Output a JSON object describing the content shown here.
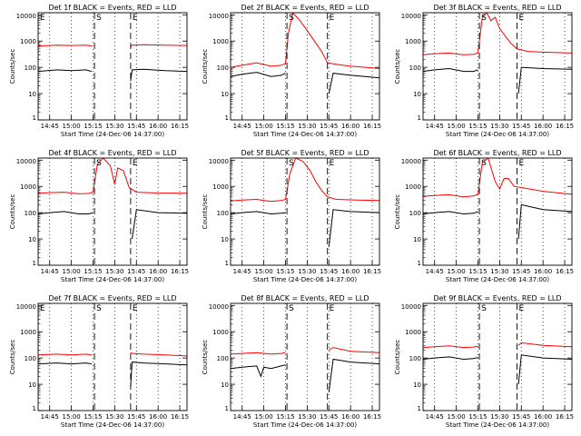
{
  "chart_data": [
    {
      "type": "line",
      "title": "Det 1f BLACK = Events, RED = LLD",
      "ylabel": "Counts/sec",
      "xlabel": "Start Time (24-Dec-06 14:37:00)",
      "x_ticks": [
        "14:45",
        "15:00",
        "15:15",
        "15:30",
        "15:45",
        "16:00",
        "16:15"
      ],
      "y_ticks": [
        "1",
        "10",
        "100",
        "1000",
        "10000"
      ],
      "ylim": [
        1,
        12000
      ],
      "yscale": "log",
      "markers": [
        {
          "label": "E",
          "x": "14:37"
        },
        {
          "label": "S",
          "x": "15:16"
        },
        {
          "label": "E",
          "x": "15:41"
        }
      ],
      "series": [
        {
          "color": "#000000",
          "x": [
            "14:37",
            "14:50",
            "15:00",
            "15:10",
            "15:14",
            "15:16",
            "15:20",
            "15:40",
            "15:41",
            "15:42",
            "15:50",
            "16:05",
            "16:20"
          ],
          "y": [
            70,
            80,
            75,
            80,
            70,
            null,
            null,
            null,
            30,
            80,
            85,
            75,
            70
          ]
        },
        {
          "color": "#ff0000",
          "x": [
            "14:37",
            "14:50",
            "15:00",
            "15:10",
            "15:14",
            "15:16",
            "15:20",
            "15:40",
            "15:41",
            "15:42",
            "15:50",
            "16:05",
            "16:20"
          ],
          "y": [
            650,
            700,
            680,
            700,
            650,
            null,
            null,
            null,
            600,
            700,
            720,
            700,
            680
          ]
        }
      ]
    },
    {
      "type": "line",
      "title": "Det 2f BLACK = Events, RED = LLD",
      "ylabel": "Counts/sec",
      "xlabel": "Start Time (24-Dec-06 14:37:00)",
      "x_ticks": [
        "14:45",
        "15:00",
        "15:15",
        "15:30",
        "15:45",
        "16:00",
        "16:15"
      ],
      "y_ticks": [
        "1",
        "10",
        "100",
        "1000",
        "10000"
      ],
      "ylim": [
        1,
        12000
      ],
      "yscale": "log",
      "markers": [
        {
          "label": "S",
          "x": "15:16"
        },
        {
          "label": "E",
          "x": "15:44"
        }
      ],
      "series": [
        {
          "color": "#000000",
          "x": [
            "14:37",
            "14:45",
            "14:55",
            "15:05",
            "15:12",
            "15:15",
            "15:16",
            "15:20",
            "15:40",
            "15:44",
            "15:45",
            "15:48",
            "16:00",
            "16:10",
            "16:20"
          ],
          "y": [
            45,
            55,
            65,
            45,
            50,
            60,
            null,
            null,
            null,
            null,
            10,
            60,
            50,
            45,
            40
          ]
        },
        {
          "color": "#ff0000",
          "x": [
            "14:37",
            "14:45",
            "14:55",
            "15:05",
            "15:12",
            "15:15",
            "15:17",
            "15:20",
            "15:25",
            "15:30",
            "15:35",
            "15:40",
            "15:44",
            "15:50",
            "16:00",
            "16:10",
            "16:20"
          ],
          "y": [
            100,
            120,
            150,
            110,
            120,
            140,
            2000,
            12000,
            6000,
            2500,
            1000,
            400,
            150,
            130,
            110,
            100,
            90
          ]
        }
      ]
    },
    {
      "type": "line",
      "title": "Det 3f BLACK = Events, RED = LLD",
      "ylabel": "Counts/sec",
      "xlabel": "Start Time (24-Dec-06 14:37:00)",
      "x_ticks": [
        "14:45",
        "15:00",
        "15:15",
        "15:30",
        "15:45",
        "16:00",
        "16:15"
      ],
      "y_ticks": [
        "1",
        "10",
        "100",
        "1000",
        "10000"
      ],
      "ylim": [
        1,
        12000
      ],
      "yscale": "log",
      "markers": [
        {
          "label": "S",
          "x": "15:16"
        },
        {
          "label": "E",
          "x": "15:42"
        }
      ],
      "series": [
        {
          "color": "#000000",
          "x": [
            "14:37",
            "14:45",
            "14:55",
            "15:05",
            "15:12",
            "15:15",
            "15:16",
            "15:20",
            "15:40",
            "15:42",
            "15:43",
            "15:45",
            "16:00",
            "16:20"
          ],
          "y": [
            70,
            80,
            90,
            70,
            70,
            80,
            null,
            null,
            null,
            null,
            10,
            100,
            90,
            85
          ]
        },
        {
          "color": "#ff0000",
          "x": [
            "14:37",
            "14:45",
            "14:55",
            "15:05",
            "15:12",
            "15:15",
            "15:18",
            "15:21",
            "15:24",
            "15:27",
            "15:30",
            "15:34",
            "15:38",
            "15:42",
            "15:50",
            "16:00",
            "16:20"
          ],
          "y": [
            300,
            330,
            350,
            300,
            310,
            350,
            8000,
            12000,
            6000,
            8000,
            3000,
            1500,
            800,
            500,
            400,
            380,
            350
          ]
        }
      ]
    },
    {
      "type": "line",
      "title": "Det 4f BLACK = Events, RED = LLD",
      "ylabel": "Counts/sec",
      "xlabel": "Start Time (24-Dec-06 14:37:00)",
      "x_ticks": [
        "14:45",
        "15:00",
        "15:15",
        "15:30",
        "15:45",
        "16:00",
        "16:15"
      ],
      "y_ticks": [
        "1",
        "10",
        "100",
        "1000",
        "10000"
      ],
      "ylim": [
        1,
        12000
      ],
      "yscale": "log",
      "markers": [
        {
          "label": "S",
          "x": "15:16"
        },
        {
          "label": "E",
          "x": "15:41"
        }
      ],
      "series": [
        {
          "color": "#000000",
          "x": [
            "14:37",
            "14:45",
            "14:55",
            "15:05",
            "15:12",
            "15:15",
            "15:16",
            "15:20",
            "15:40",
            "15:41",
            "15:42",
            "15:45",
            "16:00",
            "16:20"
          ],
          "y": [
            90,
            100,
            110,
            90,
            90,
            100,
            null,
            null,
            null,
            null,
            10,
            130,
            100,
            95
          ]
        },
        {
          "color": "#ff0000",
          "x": [
            "14:37",
            "14:45",
            "14:55",
            "15:05",
            "15:12",
            "15:15",
            "15:18",
            "15:22",
            "15:27",
            "15:30",
            "15:32",
            "15:36",
            "15:40",
            "15:45",
            "16:00",
            "16:20"
          ],
          "y": [
            550,
            580,
            600,
            520,
            540,
            600,
            7000,
            12000,
            6000,
            1200,
            5000,
            4000,
            900,
            600,
            560,
            550
          ]
        }
      ]
    },
    {
      "type": "line",
      "title": "Det 5f BLACK = Events, RED = LLD",
      "ylabel": "Counts/sec",
      "xlabel": "Start Time (24-Dec-06 14:37:00)",
      "x_ticks": [
        "14:45",
        "15:00",
        "15:15",
        "15:30",
        "15:45",
        "16:00",
        "16:15"
      ],
      "y_ticks": [
        "1",
        "10",
        "100",
        "1000",
        "10000"
      ],
      "ylim": [
        1,
        12000
      ],
      "yscale": "log",
      "markers": [
        {
          "label": "S",
          "x": "15:16"
        },
        {
          "label": "E",
          "x": "15:44"
        }
      ],
      "series": [
        {
          "color": "#000000",
          "x": [
            "14:37",
            "14:45",
            "14:55",
            "15:05",
            "15:12",
            "15:15",
            "15:16",
            "15:20",
            "15:40",
            "15:44",
            "15:45",
            "15:48",
            "16:00",
            "16:20"
          ],
          "y": [
            90,
            100,
            110,
            90,
            95,
            100,
            null,
            null,
            null,
            null,
            5,
            130,
            110,
            100
          ]
        },
        {
          "color": "#ff0000",
          "x": [
            "14:37",
            "14:45",
            "14:55",
            "15:05",
            "15:12",
            "15:15",
            "15:18",
            "15:22",
            "15:27",
            "15:32",
            "15:36",
            "15:40",
            "15:44",
            "15:50",
            "16:05",
            "16:20"
          ],
          "y": [
            280,
            300,
            320,
            270,
            290,
            320,
            3000,
            12000,
            9000,
            4000,
            1500,
            700,
            400,
            320,
            300,
            290
          ]
        }
      ]
    },
    {
      "type": "line",
      "title": "Det 6f BLACK = Events, RED = LLD",
      "ylabel": "Counts/sec",
      "xlabel": "Start Time (24-Dec-06 14:37:00)",
      "x_ticks": [
        "14:45",
        "15:00",
        "15:15",
        "15:30",
        "15:45",
        "16:00",
        "16:15"
      ],
      "y_ticks": [
        "1",
        "10",
        "100",
        "1000",
        "10000"
      ],
      "ylim": [
        1,
        12000
      ],
      "yscale": "log",
      "markers": [
        {
          "label": "S",
          "x": "15:16"
        },
        {
          "label": "E",
          "x": "15:42"
        }
      ],
      "series": [
        {
          "color": "#000000",
          "x": [
            "14:37",
            "14:45",
            "14:55",
            "15:05",
            "15:12",
            "15:15",
            "15:16",
            "15:20",
            "15:40",
            "15:42",
            "15:43",
            "15:45",
            "16:00",
            "16:20"
          ],
          "y": [
            90,
            100,
            110,
            90,
            95,
            110,
            null,
            null,
            null,
            null,
            10,
            200,
            130,
            110
          ]
        },
        {
          "color": "#ff0000",
          "x": [
            "14:37",
            "14:45",
            "14:55",
            "15:05",
            "15:12",
            "15:15",
            "15:18",
            "15:22",
            "15:27",
            "15:30",
            "15:33",
            "15:36",
            "15:40",
            "15:45",
            "16:00",
            "16:20"
          ],
          "y": [
            420,
            450,
            480,
            400,
            430,
            500,
            8000,
            12000,
            1500,
            800,
            2000,
            2000,
            1000,
            900,
            650,
            500
          ]
        }
      ]
    },
    {
      "type": "line",
      "title": "Det 7f BLACK = Events, RED = LLD",
      "ylabel": "Counts/sec",
      "xlabel": "Start Time (24-Dec-06 14:37:00)",
      "x_ticks": [
        "14:45",
        "15:00",
        "15:15",
        "15:30",
        "15:45",
        "16:00",
        "16:15"
      ],
      "y_ticks": [
        "1",
        "10",
        "100",
        "1000",
        "10000"
      ],
      "ylim": [
        1,
        12000
      ],
      "yscale": "log",
      "markers": [
        {
          "label": "E",
          "x": "14:37"
        },
        {
          "label": "S",
          "x": "15:16"
        },
        {
          "label": "E",
          "x": "15:41"
        }
      ],
      "series": [
        {
          "color": "#000000",
          "x": [
            "14:37",
            "14:50",
            "15:00",
            "15:10",
            "15:14",
            "15:16",
            "15:20",
            "15:40",
            "15:41",
            "15:42",
            "15:50",
            "16:05",
            "16:20"
          ],
          "y": [
            60,
            65,
            60,
            65,
            60,
            null,
            null,
            null,
            8,
            70,
            65,
            60,
            55
          ]
        },
        {
          "color": "#ff0000",
          "x": [
            "14:37",
            "14:50",
            "15:00",
            "15:10",
            "15:14",
            "15:16",
            "15:20",
            "15:40",
            "15:41",
            "15:42",
            "15:50",
            "16:05",
            "16:20"
          ],
          "y": [
            130,
            140,
            130,
            140,
            130,
            null,
            null,
            null,
            160,
            150,
            140,
            130,
            120
          ]
        }
      ]
    },
    {
      "type": "line",
      "title": "Det 8f BLACK = Events, RED = LLD",
      "ylabel": "Counts/sec",
      "xlabel": "Start Time (24-Dec-06 14:37:00)",
      "x_ticks": [
        "14:45",
        "15:00",
        "15:15",
        "15:30",
        "15:45",
        "16:00",
        "16:15"
      ],
      "y_ticks": [
        "1",
        "10",
        "100",
        "1000",
        "10000"
      ],
      "ylim": [
        1,
        12000
      ],
      "yscale": "log",
      "markers": [
        {
          "label": "S",
          "x": "15:16"
        },
        {
          "label": "E",
          "x": "15:44"
        }
      ],
      "series": [
        {
          "color": "#000000",
          "x": [
            "14:37",
            "14:45",
            "14:55",
            "14:58",
            "15:00",
            "15:05",
            "15:12",
            "15:15",
            "15:16",
            "15:40",
            "15:44",
            "15:45",
            "15:48",
            "16:00",
            "16:20"
          ],
          "y": [
            40,
            45,
            50,
            20,
            45,
            40,
            50,
            55,
            null,
            null,
            null,
            5,
            90,
            70,
            60
          ]
        },
        {
          "color": "#ff0000",
          "x": [
            "14:37",
            "14:45",
            "14:55",
            "15:05",
            "15:12",
            "15:15",
            "15:16",
            "15:40",
            "15:44",
            "15:45",
            "15:48",
            "16:00",
            "16:20"
          ],
          "y": [
            140,
            150,
            160,
            140,
            150,
            160,
            null,
            null,
            null,
            200,
            250,
            180,
            160
          ]
        }
      ]
    },
    {
      "type": "line",
      "title": "Det 9f BLACK = Events, RED = LLD",
      "ylabel": "Counts/sec",
      "xlabel": "Start Time (24-Dec-06 14:37:00)",
      "x_ticks": [
        "14:45",
        "15:00",
        "15:15",
        "15:30",
        "15:45",
        "16:00",
        "16:15"
      ],
      "y_ticks": [
        "1",
        "10",
        "100",
        "1000",
        "10000"
      ],
      "ylim": [
        1,
        12000
      ],
      "yscale": "log",
      "markers": [
        {
          "label": "S",
          "x": "15:16"
        },
        {
          "label": "E",
          "x": "15:42"
        }
      ],
      "series": [
        {
          "color": "#000000",
          "x": [
            "14:37",
            "14:45",
            "14:55",
            "15:05",
            "15:12",
            "15:15",
            "15:16",
            "15:40",
            "15:42",
            "15:43",
            "15:45",
            "16:00",
            "16:20"
          ],
          "y": [
            90,
            100,
            110,
            90,
            95,
            105,
            null,
            null,
            null,
            10,
            130,
            100,
            90
          ]
        },
        {
          "color": "#ff0000",
          "x": [
            "14:37",
            "14:45",
            "14:55",
            "15:05",
            "15:12",
            "15:15",
            "15:16",
            "15:40",
            "15:42",
            "15:43",
            "15:45",
            "16:00",
            "16:20"
          ],
          "y": [
            250,
            270,
            290,
            250,
            260,
            280,
            null,
            null,
            null,
            300,
            380,
            300,
            270
          ]
        }
      ]
    }
  ]
}
